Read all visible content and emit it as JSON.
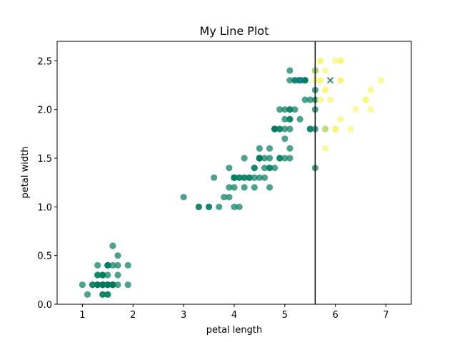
{
  "chart_data": {
    "type": "scatter",
    "title": "My Line Plot",
    "xlabel": "petal length",
    "ylabel": "petal width",
    "xlim": [
      0.5,
      7.5
    ],
    "ylim": [
      0,
      2.7
    ],
    "xticks": [
      1,
      2,
      3,
      4,
      5,
      6,
      7
    ],
    "yticks": [
      0.0,
      0.5,
      1.0,
      1.5,
      2.0,
      2.5
    ],
    "ytick_labels": [
      "0.0",
      "0.5",
      "1.0",
      "1.5",
      "2.0",
      "2.5"
    ],
    "grid": false,
    "colors": {
      "cluster_a": "#007a5e",
      "cluster_b": "#f7f774",
      "marker_x": "#1f77b4",
      "vline": "#000000"
    },
    "series": [
      {
        "color": "#007a5e",
        "points": [
          [
            1.4,
            0.2
          ],
          [
            1.4,
            0.2
          ],
          [
            1.3,
            0.2
          ],
          [
            1.5,
            0.2
          ],
          [
            1.4,
            0.2
          ],
          [
            1.7,
            0.4
          ],
          [
            1.4,
            0.3
          ],
          [
            1.5,
            0.2
          ],
          [
            1.4,
            0.2
          ],
          [
            1.5,
            0.1
          ],
          [
            1.5,
            0.2
          ],
          [
            1.6,
            0.2
          ],
          [
            1.4,
            0.1
          ],
          [
            1.1,
            0.1
          ],
          [
            1.2,
            0.2
          ],
          [
            1.5,
            0.4
          ],
          [
            1.3,
            0.4
          ],
          [
            1.4,
            0.3
          ],
          [
            1.7,
            0.3
          ],
          [
            1.5,
            0.3
          ],
          [
            1.7,
            0.2
          ],
          [
            1.5,
            0.4
          ],
          [
            1.0,
            0.2
          ],
          [
            1.7,
            0.5
          ],
          [
            1.9,
            0.2
          ],
          [
            1.6,
            0.2
          ],
          [
            1.6,
            0.4
          ],
          [
            1.5,
            0.2
          ],
          [
            1.4,
            0.2
          ],
          [
            1.6,
            0.2
          ],
          [
            1.6,
            0.2
          ],
          [
            1.5,
            0.4
          ],
          [
            1.5,
            0.1
          ],
          [
            1.4,
            0.2
          ],
          [
            1.5,
            0.2
          ],
          [
            1.2,
            0.2
          ],
          [
            1.3,
            0.2
          ],
          [
            1.4,
            0.1
          ],
          [
            1.3,
            0.2
          ],
          [
            1.5,
            0.2
          ],
          [
            1.3,
            0.3
          ],
          [
            1.3,
            0.3
          ],
          [
            1.3,
            0.2
          ],
          [
            1.6,
            0.6
          ],
          [
            1.9,
            0.4
          ],
          [
            1.4,
            0.3
          ],
          [
            1.6,
            0.2
          ],
          [
            1.4,
            0.2
          ],
          [
            1.5,
            0.2
          ],
          [
            1.4,
            0.2
          ],
          [
            4.7,
            1.4
          ],
          [
            4.5,
            1.5
          ],
          [
            4.9,
            1.5
          ],
          [
            4.0,
            1.3
          ],
          [
            4.6,
            1.5
          ],
          [
            4.5,
            1.3
          ],
          [
            4.7,
            1.6
          ],
          [
            3.3,
            1.0
          ],
          [
            4.6,
            1.3
          ],
          [
            3.9,
            1.4
          ],
          [
            3.5,
            1.0
          ],
          [
            4.2,
            1.5
          ],
          [
            4.0,
            1.0
          ],
          [
            4.7,
            1.4
          ],
          [
            3.6,
            1.3
          ],
          [
            4.4,
            1.4
          ],
          [
            4.5,
            1.5
          ],
          [
            4.1,
            1.0
          ],
          [
            4.5,
            1.5
          ],
          [
            3.9,
            1.1
          ],
          [
            4.8,
            1.8
          ],
          [
            4.0,
            1.3
          ],
          [
            4.9,
            1.5
          ],
          [
            4.7,
            1.2
          ],
          [
            4.3,
            1.3
          ],
          [
            4.4,
            1.4
          ],
          [
            4.8,
            1.4
          ],
          [
            5.0,
            1.7
          ],
          [
            4.5,
            1.5
          ],
          [
            3.5,
            1.0
          ],
          [
            3.8,
            1.1
          ],
          [
            3.7,
            1.0
          ],
          [
            3.9,
            1.2
          ],
          [
            5.1,
            1.6
          ],
          [
            4.5,
            1.5
          ],
          [
            4.5,
            1.6
          ],
          [
            4.7,
            1.5
          ],
          [
            4.4,
            1.3
          ],
          [
            4.1,
            1.3
          ],
          [
            4.0,
            1.3
          ],
          [
            4.4,
            1.2
          ],
          [
            4.6,
            1.4
          ],
          [
            4.0,
            1.2
          ],
          [
            3.3,
            1.0
          ],
          [
            4.2,
            1.3
          ],
          [
            4.2,
            1.2
          ],
          [
            4.2,
            1.3
          ],
          [
            4.3,
            1.3
          ],
          [
            3.0,
            1.1
          ],
          [
            4.1,
            1.3
          ],
          [
            5.1,
            2.4
          ],
          [
            5.1,
            1.9
          ],
          [
            5.0,
            2.0
          ],
          [
            5.1,
            2.0
          ],
          [
            5.3,
            1.9
          ],
          [
            5.5,
            1.8
          ],
          [
            5.0,
            1.5
          ],
          [
            4.9,
            1.8
          ],
          [
            5.1,
            1.8
          ],
          [
            5.6,
            1.4
          ],
          [
            5.5,
            2.1
          ],
          [
            4.8,
            1.8
          ],
          [
            5.4,
            2.3
          ],
          [
            5.6,
            2.4
          ],
          [
            5.1,
            2.3
          ],
          [
            5.2,
            2.3
          ],
          [
            5.0,
            1.9
          ],
          [
            5.2,
            2.0
          ],
          [
            5.4,
            2.1
          ],
          [
            5.1,
            1.5
          ],
          [
            4.9,
            2.0
          ],
          [
            4.8,
            1.8
          ],
          [
            5.6,
            2.2
          ],
          [
            5.2,
            2.3
          ],
          [
            5.6,
            2.1
          ],
          [
            5.8,
            1.8
          ],
          [
            5.6,
            1.8
          ],
          [
            5.1,
            1.9
          ],
          [
            5.3,
            2.3
          ],
          [
            5.5,
            1.8
          ],
          [
            5.6,
            2.0
          ],
          [
            5.0,
            1.8
          ],
          [
            5.4,
            2.3
          ],
          [
            5.3,
            2.3
          ],
          [
            4.9,
            1.8
          ],
          [
            4.8,
            1.8
          ],
          [
            5.1,
            2.0
          ],
          [
            5.4,
            2.3
          ],
          [
            5.6,
            2.4
          ],
          [
            5.3,
            2.3
          ]
        ]
      },
      {
        "color": "#f7f774",
        "points": [
          [
            6.0,
            2.5
          ],
          [
            5.9,
            2.1
          ],
          [
            6.6,
            2.1
          ],
          [
            5.8,
            2.2
          ],
          [
            6.3,
            1.8
          ],
          [
            6.1,
            2.5
          ],
          [
            5.7,
            2.5
          ],
          [
            5.8,
            2.4
          ],
          [
            6.7,
            2.2
          ],
          [
            6.9,
            2.3
          ],
          [
            6.7,
            2.0
          ],
          [
            6.0,
            1.8
          ],
          [
            5.7,
            2.3
          ],
          [
            6.1,
            1.9
          ],
          [
            6.1,
            2.3
          ],
          [
            6.4,
            2.0
          ],
          [
            5.9,
            2.3
          ],
          [
            5.7,
            2.1
          ],
          [
            6.0,
            1.8
          ],
          [
            5.8,
            1.6
          ],
          [
            6.1,
            2.5
          ],
          [
            5.7,
            2.3
          ],
          [
            5.8,
            1.8
          ],
          [
            6.6,
            2.1
          ],
          [
            6.0,
            1.8
          ],
          [
            6.1,
            2.3
          ],
          [
            5.6,
            2.4
          ],
          [
            5.7,
            2.5
          ],
          [
            5.6,
            2.3
          ],
          [
            5.8,
            2.2
          ]
        ]
      }
    ],
    "markers": [
      {
        "shape": "x",
        "x": 5.9,
        "y": 2.3,
        "color": "#1f77b4"
      },
      {
        "shape": "x",
        "x": 5.3,
        "y": 2.3,
        "color": "#1f77b4"
      }
    ],
    "vline": {
      "x": 5.6,
      "color": "#000000"
    }
  }
}
